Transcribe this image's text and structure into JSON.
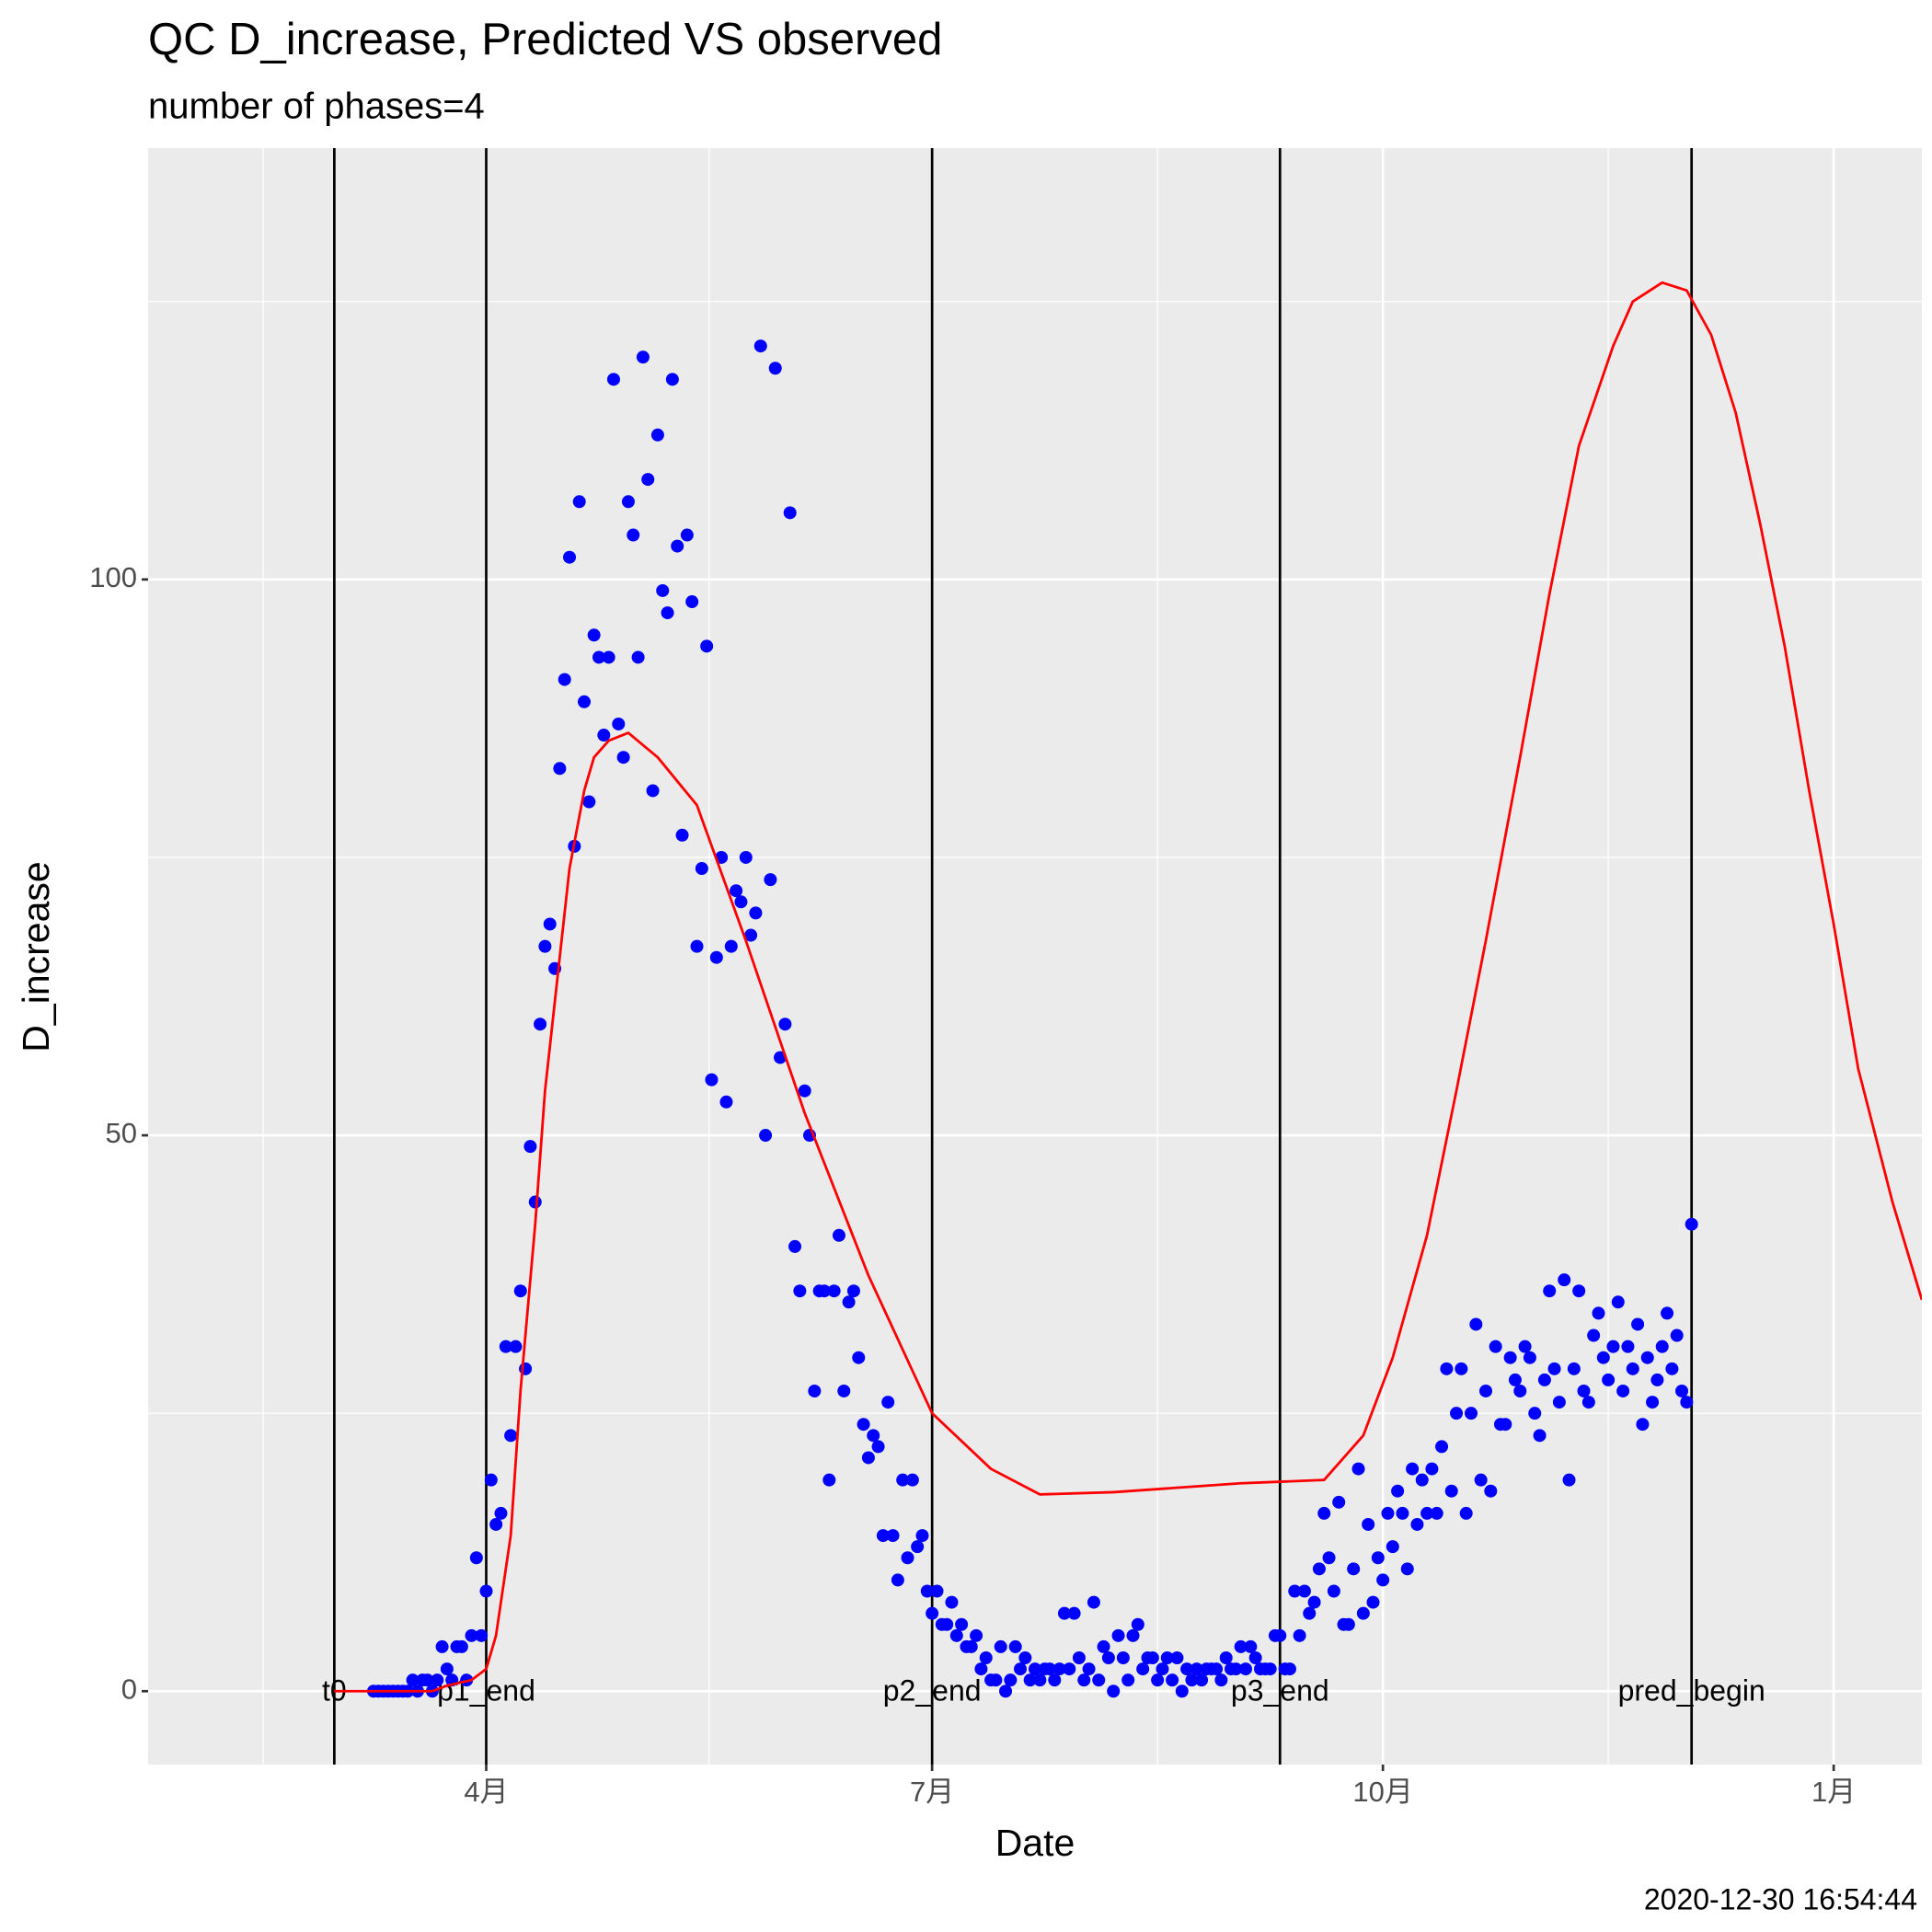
{
  "chart_data": {
    "type": "line",
    "title": "QC D_increase, Predicted VS observed",
    "subtitle": "number of phases=4",
    "x_label": "Date",
    "y_label": "D_increase",
    "caption": "2020-12-30 16:54:44",
    "xlim": [
      22,
      384
    ],
    "ylim": [
      -6.6,
      138.8
    ],
    "xticks": [
      {
        "value": 91,
        "label": "4月"
      },
      {
        "value": 182,
        "label": "7月"
      },
      {
        "value": 274,
        "label": "10月"
      },
      {
        "value": 366,
        "label": "1月"
      }
    ],
    "yticks": [
      0,
      50,
      100
    ],
    "grid": true,
    "vlines": [
      {
        "value": 60,
        "label": "t0"
      },
      {
        "value": 91,
        "label": "p1_end"
      },
      {
        "value": 182,
        "label": "p2_end"
      },
      {
        "value": 253,
        "label": "p3_end"
      },
      {
        "value": 337,
        "label": "pred_begin"
      }
    ],
    "series": [
      {
        "type": "scatter",
        "color": "#0000ff",
        "x": [
          68,
          69,
          70,
          71,
          72,
          73,
          74,
          75,
          76,
          77,
          78,
          79,
          80,
          81,
          82,
          83,
          84,
          85,
          86,
          87,
          88,
          89,
          90,
          91,
          92,
          93,
          94,
          95,
          96,
          97,
          98,
          99,
          100,
          101,
          102,
          103,
          104,
          105,
          106,
          107,
          108,
          109,
          110,
          111,
          112,
          113,
          114,
          115,
          116,
          117,
          118,
          119,
          120,
          121,
          122,
          123,
          124,
          125,
          126,
          127,
          128,
          129,
          130,
          131,
          132,
          133,
          134,
          135,
          136,
          137,
          138,
          139,
          140,
          141,
          142,
          143,
          144,
          145,
          146,
          147,
          148,
          149,
          150,
          151,
          152,
          153,
          154,
          155,
          156,
          157,
          158,
          159,
          160,
          161,
          162,
          163,
          164,
          165,
          166,
          167,
          168,
          169,
          170,
          171,
          172,
          173,
          174,
          175,
          176,
          177,
          178,
          179,
          180,
          181,
          182,
          183,
          184,
          185,
          186,
          187,
          188,
          189,
          190,
          191,
          192,
          193,
          194,
          195,
          196,
          197,
          198,
          199,
          200,
          201,
          202,
          203,
          204,
          205,
          206,
          207,
          208,
          209,
          210,
          211,
          212,
          213,
          214,
          215,
          216,
          217,
          218,
          219,
          220,
          221,
          222,
          223,
          224,
          225,
          226,
          227,
          228,
          229,
          230,
          231,
          232,
          233,
          234,
          235,
          236,
          237,
          238,
          239,
          240,
          241,
          242,
          243,
          244,
          245,
          246,
          247,
          248,
          249,
          250,
          251,
          252,
          253,
          254,
          255,
          256,
          257,
          258,
          259,
          260,
          261,
          262,
          263,
          264,
          265,
          266,
          267,
          268,
          269,
          270,
          271,
          272,
          273,
          274,
          275,
          276,
          277,
          278,
          279,
          280,
          281,
          282,
          283,
          284,
          285,
          286,
          287,
          288,
          289,
          290,
          291,
          292,
          293,
          294,
          295,
          296,
          297,
          298,
          299,
          300,
          301,
          302,
          303,
          304,
          305,
          306,
          307,
          308,
          309,
          310,
          311,
          312,
          313,
          314,
          315,
          316,
          317,
          318,
          319,
          320,
          321,
          322,
          323,
          324,
          325,
          326,
          327,
          328,
          329,
          330,
          331,
          332,
          333,
          334,
          335,
          336,
          337
        ],
        "values": [
          0,
          0,
          0,
          0,
          0,
          0,
          0,
          0,
          1,
          0,
          1,
          1,
          0,
          1,
          4,
          2,
          1,
          4,
          4,
          1,
          5,
          12,
          5,
          9,
          19,
          15,
          16,
          31,
          23,
          31,
          36,
          29,
          49,
          44,
          60,
          67,
          69,
          65,
          83,
          91,
          102,
          76,
          107,
          89,
          80,
          95,
          93,
          86,
          93,
          118,
          87,
          84,
          107,
          104,
          93,
          120,
          109,
          81,
          113,
          99,
          97,
          118,
          103,
          77,
          104,
          98,
          67,
          74,
          94,
          55,
          66,
          75,
          53,
          67,
          72,
          71,
          75,
          68,
          70,
          121,
          50,
          73,
          119,
          57,
          60,
          106,
          40,
          36,
          54,
          50,
          27,
          36,
          36,
          19,
          36,
          41,
          27,
          35,
          36,
          30,
          24,
          21,
          23,
          22,
          14,
          26,
          14,
          10,
          19,
          12,
          19,
          13,
          14,
          9,
          7,
          9,
          6,
          6,
          8,
          5,
          6,
          4,
          4,
          5,
          2,
          3,
          1,
          1,
          4,
          0,
          1,
          4,
          2,
          3,
          1,
          2,
          1,
          2,
          2,
          1,
          2,
          7,
          2,
          7,
          3,
          1,
          2,
          8,
          1,
          4,
          3,
          0,
          5,
          3,
          1,
          5,
          6,
          2,
          3,
          3,
          1,
          2,
          3,
          1,
          3,
          0,
          2,
          1,
          2,
          1,
          2,
          2,
          2,
          1,
          3,
          2,
          2,
          4,
          2,
          4,
          3,
          2,
          2,
          2,
          5,
          5,
          2,
          2,
          9,
          5,
          9,
          7,
          8,
          11,
          16,
          12,
          9,
          17,
          6,
          6,
          11,
          20,
          7,
          15,
          8,
          12,
          10,
          16,
          13,
          18,
          16,
          11,
          20,
          15,
          19,
          16,
          20,
          16,
          22,
          29,
          18,
          25,
          29,
          16,
          25,
          33,
          19,
          27,
          18,
          31,
          24,
          24,
          30,
          28,
          27,
          31,
          30,
          25,
          23,
          28,
          36,
          29,
          26,
          37,
          19,
          29,
          36,
          27,
          26,
          32,
          34,
          30,
          28,
          31,
          35,
          27,
          31,
          29,
          33,
          24,
          30,
          26,
          28,
          31,
          34,
          29,
          32,
          27,
          26,
          42
        ]
      },
      {
        "type": "line",
        "color": "#ff0000",
        "x": [
          60,
          70,
          80,
          83,
          88,
          91,
          93,
          96,
          98,
          101,
          103,
          106,
          108,
          111,
          113,
          116,
          120,
          126,
          134,
          144,
          156,
          169,
          182,
          194,
          204,
          219,
          245,
          262,
          270,
          276,
          283,
          289,
          295,
          302,
          308,
          314,
          321,
          325,
          331,
          336,
          341,
          346,
          351,
          356,
          361,
          366,
          371,
          378,
          384
        ],
        "values": [
          0,
          0,
          0,
          0.5,
          1,
          2,
          5,
          14,
          27,
          42,
          54,
          66,
          74,
          81,
          84,
          85.5,
          86.2,
          84,
          79.7,
          67.5,
          52,
          37.4,
          25,
          20,
          17.7,
          17.9,
          18.7,
          19,
          23,
          30,
          41,
          54,
          67.5,
          84,
          98.7,
          112,
          121,
          125,
          126.7,
          126,
          122,
          115,
          105,
          94,
          81,
          69,
          56,
          44,
          35.2
        ]
      }
    ]
  }
}
